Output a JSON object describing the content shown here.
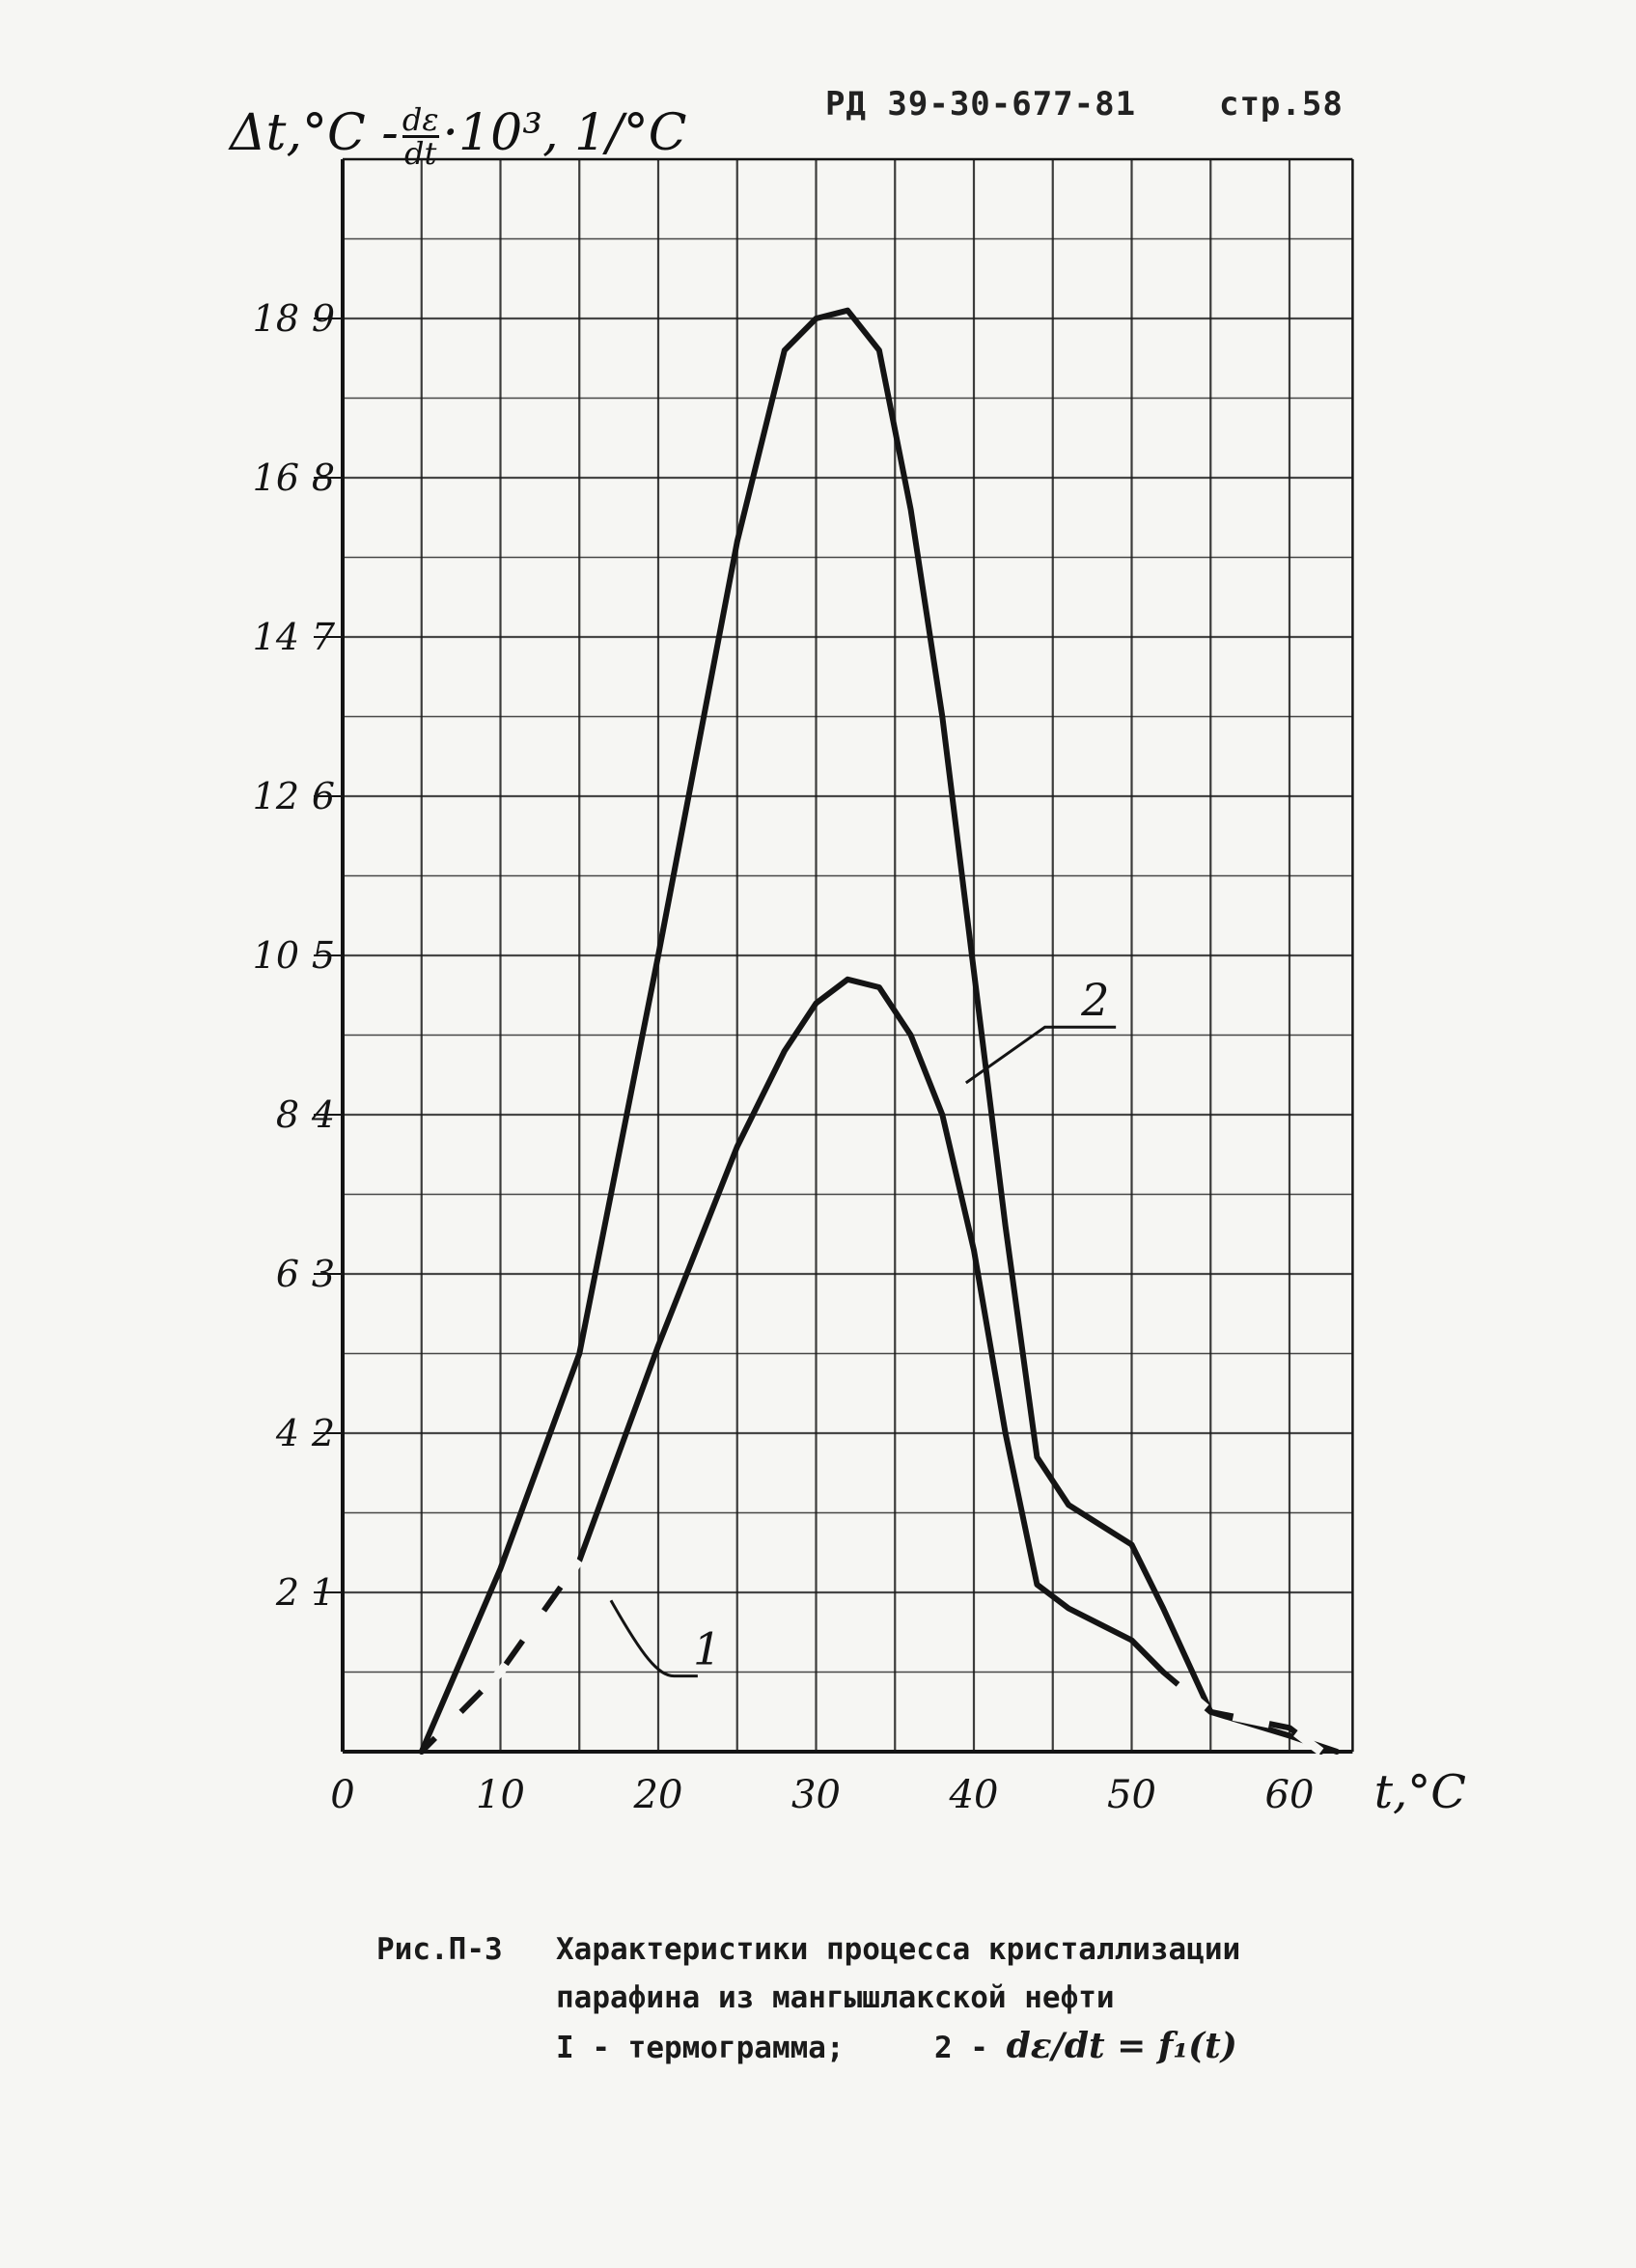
{
  "header": {
    "doc_ref": "РД 39-30-677-81",
    "page": "стр.58"
  },
  "chart_data": {
    "type": "line",
    "xlabel": "t,°C",
    "ylabel": "Δt,°C - dε/dt·10³, 1/°C",
    "xlim": [
      0,
      64
    ],
    "ylim": [
      0,
      20
    ],
    "x_ticks": [
      "0",
      "10",
      "20",
      "30",
      "40",
      "50",
      "60"
    ],
    "y_ticks_outer": [
      "2",
      "4",
      "6",
      "8",
      "10",
      "12",
      "14",
      "16",
      "18"
    ],
    "y_ticks_inner": [
      "1",
      "2",
      "3",
      "4",
      "5",
      "6",
      "7",
      "8",
      "9"
    ],
    "grid": true,
    "series": [
      {
        "name": "1",
        "x": [
          5,
          10,
          15,
          20,
          25,
          28,
          30,
          32,
          34,
          36,
          38,
          40,
          42,
          44,
          46,
          50,
          52,
          55,
          60,
          62
        ],
        "values": [
          0,
          1.0,
          2.4,
          5.1,
          7.6,
          8.8,
          9.4,
          9.7,
          9.6,
          9.0,
          8.0,
          6.3,
          4.0,
          2.1,
          1.8,
          1.4,
          1.0,
          0.5,
          0.3,
          0
        ],
        "style": "solid, dashed at both ends"
      },
      {
        "name": "2",
        "x": [
          5,
          10,
          15,
          20,
          25,
          28,
          30,
          32,
          34,
          36,
          38,
          40,
          42,
          44,
          46,
          50,
          52,
          55,
          60,
          63
        ],
        "values": [
          0,
          2.3,
          5.0,
          10.0,
          15.2,
          17.6,
          18.0,
          18.1,
          17.6,
          15.6,
          13.0,
          9.8,
          6.6,
          3.7,
          3.1,
          2.6,
          1.8,
          0.5,
          0.2,
          0
        ],
        "style": "solid"
      }
    ]
  },
  "caption": {
    "label": "Рис.П-3",
    "line1": "Характеристики процесса кристаллизации",
    "line2": "парафина из мангышлакской нефти",
    "line3_a": "I - термограмма;",
    "line3_b": "2 -",
    "line3_formula": "dε/dt = f₁(t)"
  },
  "colors": {
    "ink": "#141414",
    "grid": "#1c1c1c",
    "paper": "#f6f6f3"
  }
}
